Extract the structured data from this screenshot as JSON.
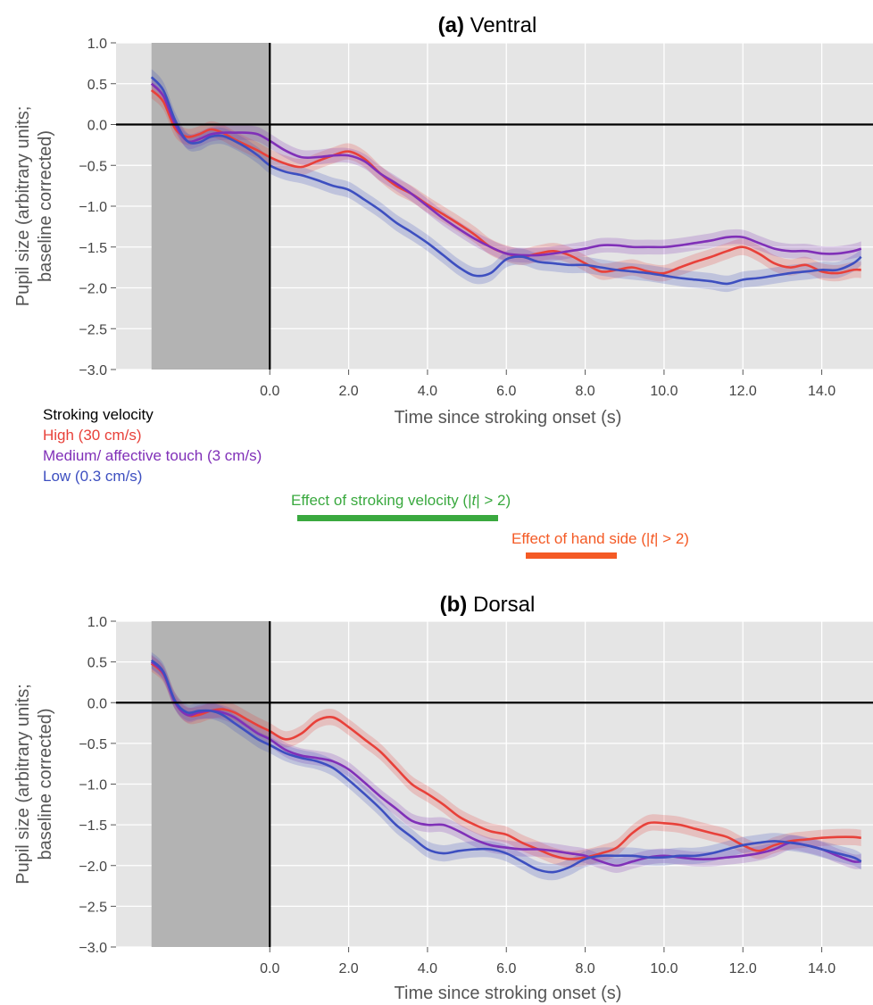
{
  "colors": {
    "high": "#e8413a",
    "medium": "#8030b8",
    "low": "#3d4fc0",
    "effect_velocity": "#3aa93f",
    "effect_hand": "#f45a25",
    "panel_bg": "#e5e5e5",
    "shade": "#b3b3b3"
  },
  "legend": {
    "title": "Stroking velocity",
    "items": [
      {
        "key": "high",
        "label": "High (30 cm/s)"
      },
      {
        "key": "medium",
        "label": "Medium/ affective touch (3 cm/s)"
      },
      {
        "key": "low",
        "label": "Low (0.3 cm/s)"
      }
    ]
  },
  "effects": [
    {
      "key": "velocity",
      "label_pre": "Effect of stroking velocity (|",
      "label_t": "t",
      "label_post": "| > 2)",
      "x_start": 0.7,
      "x_end": 5.8
    },
    {
      "key": "hand",
      "label_pre": "Effect of hand side (|",
      "label_t": "t",
      "label_post": "| > 2)",
      "x_start": 6.5,
      "x_end": 8.8
    }
  ],
  "chart_data": [
    {
      "type": "line",
      "title_bold": "(a)",
      "title": "Ventral",
      "xlabel": "Time since stroking onset (s)",
      "ylabel_lines": [
        "Pupil size (arbitrary units;",
        "baseline corrected)"
      ],
      "xlim": [
        -3.9,
        15.3
      ],
      "ylim": [
        -3.0,
        1.0
      ],
      "xticks": [
        0.0,
        2.0,
        4.0,
        6.0,
        8.0,
        10.0,
        12.0,
        14.0
      ],
      "xtick_labels": [
        "0.0",
        "2.0",
        "4.0",
        "6.0",
        "8.0",
        "10.0",
        "12.0",
        "14.0"
      ],
      "yticks": [
        1.0,
        0.5,
        0.0,
        -0.5,
        -1.0,
        -1.5,
        -2.0,
        -2.5,
        -3.0
      ],
      "ytick_labels": [
        "1.0",
        "0.5",
        "0.0",
        "−0.5",
        "−1.0",
        "−1.5",
        "−2.0",
        "−2.5",
        "−3.0"
      ],
      "shaded_region": [
        -3.0,
        0.0
      ],
      "series": [
        {
          "key": "high",
          "band": 0.1,
          "x": [
            -3.0,
            -2.7,
            -2.4,
            -2.1,
            -1.8,
            -1.5,
            -1.2,
            -0.9,
            -0.6,
            -0.3,
            0.0,
            0.4,
            0.8,
            1.2,
            1.6,
            2.0,
            2.4,
            2.8,
            3.2,
            3.6,
            4.0,
            4.4,
            4.8,
            5.2,
            5.6,
            6.0,
            6.4,
            6.8,
            7.2,
            7.6,
            8.0,
            8.4,
            8.8,
            9.2,
            9.6,
            10.0,
            10.4,
            10.8,
            11.2,
            11.6,
            12.0,
            12.4,
            12.8,
            13.2,
            13.6,
            14.0,
            14.4,
            14.8,
            15.0
          ],
          "y": [
            0.42,
            0.28,
            -0.05,
            -0.15,
            -0.12,
            -0.06,
            -0.1,
            -0.18,
            -0.25,
            -0.32,
            -0.4,
            -0.48,
            -0.52,
            -0.45,
            -0.38,
            -0.33,
            -0.42,
            -0.6,
            -0.75,
            -0.85,
            -0.98,
            -1.1,
            -1.22,
            -1.35,
            -1.5,
            -1.58,
            -1.62,
            -1.58,
            -1.55,
            -1.6,
            -1.7,
            -1.8,
            -1.78,
            -1.75,
            -1.8,
            -1.82,
            -1.75,
            -1.68,
            -1.62,
            -1.55,
            -1.5,
            -1.58,
            -1.7,
            -1.75,
            -1.72,
            -1.8,
            -1.82,
            -1.78,
            -1.78
          ]
        },
        {
          "key": "medium",
          "band": 0.09,
          "x": [
            -3.0,
            -2.7,
            -2.4,
            -2.1,
            -1.8,
            -1.5,
            -1.2,
            -0.9,
            -0.6,
            -0.3,
            0.0,
            0.4,
            0.8,
            1.2,
            1.6,
            2.0,
            2.4,
            2.8,
            3.2,
            3.6,
            4.0,
            4.4,
            4.8,
            5.2,
            5.6,
            6.0,
            6.4,
            6.8,
            7.2,
            7.6,
            8.0,
            8.4,
            8.8,
            9.2,
            9.6,
            10.0,
            10.4,
            10.8,
            11.2,
            11.6,
            12.0,
            12.4,
            12.8,
            13.2,
            13.6,
            14.0,
            14.4,
            14.8,
            15.0
          ],
          "y": [
            0.5,
            0.35,
            0.0,
            -0.2,
            -0.18,
            -0.12,
            -0.1,
            -0.1,
            -0.1,
            -0.12,
            -0.2,
            -0.32,
            -0.4,
            -0.4,
            -0.38,
            -0.38,
            -0.45,
            -0.6,
            -0.72,
            -0.85,
            -1.0,
            -1.15,
            -1.28,
            -1.4,
            -1.5,
            -1.58,
            -1.6,
            -1.6,
            -1.58,
            -1.55,
            -1.52,
            -1.48,
            -1.48,
            -1.5,
            -1.5,
            -1.5,
            -1.48,
            -1.45,
            -1.42,
            -1.38,
            -1.38,
            -1.45,
            -1.52,
            -1.55,
            -1.55,
            -1.58,
            -1.58,
            -1.55,
            -1.52
          ]
        },
        {
          "key": "low",
          "band": 0.1,
          "x": [
            -3.0,
            -2.7,
            -2.4,
            -2.1,
            -1.8,
            -1.5,
            -1.2,
            -0.9,
            -0.6,
            -0.3,
            0.0,
            0.4,
            0.8,
            1.2,
            1.6,
            2.0,
            2.4,
            2.8,
            3.2,
            3.6,
            4.0,
            4.4,
            4.8,
            5.2,
            5.6,
            6.0,
            6.4,
            6.8,
            7.2,
            7.6,
            8.0,
            8.4,
            8.8,
            9.2,
            9.6,
            10.0,
            10.4,
            10.8,
            11.2,
            11.6,
            12.0,
            12.4,
            12.8,
            13.2,
            13.6,
            14.0,
            14.4,
            14.8,
            15.0
          ],
          "y": [
            0.58,
            0.42,
            0.05,
            -0.2,
            -0.22,
            -0.15,
            -0.14,
            -0.2,
            -0.28,
            -0.38,
            -0.5,
            -0.58,
            -0.62,
            -0.68,
            -0.75,
            -0.8,
            -0.92,
            -1.05,
            -1.2,
            -1.32,
            -1.45,
            -1.6,
            -1.75,
            -1.85,
            -1.82,
            -1.65,
            -1.62,
            -1.68,
            -1.7,
            -1.72,
            -1.72,
            -1.75,
            -1.78,
            -1.8,
            -1.82,
            -1.85,
            -1.88,
            -1.9,
            -1.92,
            -1.95,
            -1.9,
            -1.88,
            -1.85,
            -1.82,
            -1.8,
            -1.78,
            -1.78,
            -1.7,
            -1.62
          ]
        }
      ]
    },
    {
      "type": "line",
      "title_bold": "(b)",
      "title": "Dorsal",
      "xlabel": "Time since stroking onset (s)",
      "ylabel_lines": [
        "Pupil size (arbitrary units;",
        "baseline corrected)"
      ],
      "xlim": [
        -3.9,
        15.3
      ],
      "ylim": [
        -3.0,
        1.0
      ],
      "xticks": [
        0.0,
        2.0,
        4.0,
        6.0,
        8.0,
        10.0,
        12.0,
        14.0
      ],
      "xtick_labels": [
        "0.0",
        "2.0",
        "4.0",
        "6.0",
        "8.0",
        "10.0",
        "12.0",
        "14.0"
      ],
      "yticks": [
        1.0,
        0.5,
        0.0,
        -0.5,
        -1.0,
        -1.5,
        -2.0,
        -2.5,
        -3.0
      ],
      "ytick_labels": [
        "1.0",
        "0.5",
        "0.0",
        "−0.5",
        "−1.0",
        "−1.5",
        "−2.0",
        "−2.5",
        "−3.0"
      ],
      "shaded_region": [
        -3.0,
        0.0
      ],
      "series": [
        {
          "key": "high",
          "band": 0.1,
          "x": [
            -3.0,
            -2.7,
            -2.4,
            -2.1,
            -1.8,
            -1.5,
            -1.2,
            -0.9,
            -0.6,
            -0.3,
            0.0,
            0.4,
            0.8,
            1.2,
            1.6,
            2.0,
            2.4,
            2.8,
            3.2,
            3.6,
            4.0,
            4.4,
            4.8,
            5.2,
            5.6,
            6.0,
            6.4,
            6.8,
            7.2,
            7.6,
            8.0,
            8.4,
            8.8,
            9.2,
            9.6,
            10.0,
            10.4,
            10.8,
            11.2,
            11.6,
            12.0,
            12.4,
            12.8,
            13.2,
            13.6,
            14.0,
            14.4,
            14.8,
            15.0
          ],
          "y": [
            0.48,
            0.35,
            0.02,
            -0.15,
            -0.15,
            -0.1,
            -0.08,
            -0.12,
            -0.2,
            -0.28,
            -0.35,
            -0.45,
            -0.38,
            -0.22,
            -0.18,
            -0.3,
            -0.45,
            -0.6,
            -0.8,
            -1.0,
            -1.12,
            -1.25,
            -1.4,
            -1.5,
            -1.58,
            -1.62,
            -1.72,
            -1.8,
            -1.88,
            -1.92,
            -1.9,
            -1.85,
            -1.78,
            -1.6,
            -1.48,
            -1.48,
            -1.5,
            -1.55,
            -1.6,
            -1.65,
            -1.75,
            -1.82,
            -1.75,
            -1.7,
            -1.68,
            -1.66,
            -1.65,
            -1.65,
            -1.66
          ]
        },
        {
          "key": "medium",
          "band": 0.09,
          "x": [
            -3.0,
            -2.7,
            -2.4,
            -2.1,
            -1.8,
            -1.5,
            -1.2,
            -0.9,
            -0.6,
            -0.3,
            0.0,
            0.4,
            0.8,
            1.2,
            1.6,
            2.0,
            2.4,
            2.8,
            3.2,
            3.6,
            4.0,
            4.4,
            4.8,
            5.2,
            5.6,
            6.0,
            6.4,
            6.8,
            7.2,
            7.6,
            8.0,
            8.4,
            8.8,
            9.2,
            9.6,
            10.0,
            10.4,
            10.8,
            11.2,
            11.6,
            12.0,
            12.4,
            12.8,
            13.2,
            13.6,
            14.0,
            14.4,
            14.8,
            15.0
          ],
          "y": [
            0.5,
            0.36,
            0.0,
            -0.15,
            -0.12,
            -0.1,
            -0.12,
            -0.18,
            -0.28,
            -0.38,
            -0.45,
            -0.58,
            -0.65,
            -0.68,
            -0.72,
            -0.82,
            -0.98,
            -1.15,
            -1.3,
            -1.45,
            -1.5,
            -1.5,
            -1.58,
            -1.68,
            -1.75,
            -1.78,
            -1.8,
            -1.8,
            -1.82,
            -1.85,
            -1.88,
            -1.95,
            -2.0,
            -1.95,
            -1.9,
            -1.88,
            -1.9,
            -1.92,
            -1.92,
            -1.9,
            -1.88,
            -1.85,
            -1.8,
            -1.72,
            -1.75,
            -1.8,
            -1.88,
            -1.95,
            -1.95
          ]
        },
        {
          "key": "low",
          "band": 0.1,
          "x": [
            -3.0,
            -2.7,
            -2.4,
            -2.1,
            -1.8,
            -1.5,
            -1.2,
            -0.9,
            -0.6,
            -0.3,
            0.0,
            0.4,
            0.8,
            1.2,
            1.6,
            2.0,
            2.4,
            2.8,
            3.2,
            3.6,
            4.0,
            4.4,
            4.8,
            5.2,
            5.6,
            6.0,
            6.4,
            6.8,
            7.2,
            7.6,
            8.0,
            8.4,
            8.8,
            9.2,
            9.6,
            10.0,
            10.4,
            10.8,
            11.2,
            11.6,
            12.0,
            12.4,
            12.8,
            13.2,
            13.6,
            14.0,
            14.4,
            14.8,
            15.0
          ],
          "y": [
            0.52,
            0.38,
            0.02,
            -0.12,
            -0.1,
            -0.1,
            -0.15,
            -0.25,
            -0.35,
            -0.45,
            -0.52,
            -0.62,
            -0.68,
            -0.72,
            -0.8,
            -0.95,
            -1.12,
            -1.3,
            -1.5,
            -1.65,
            -1.8,
            -1.85,
            -1.82,
            -1.8,
            -1.8,
            -1.85,
            -1.95,
            -2.05,
            -2.08,
            -2.02,
            -1.92,
            -1.88,
            -1.88,
            -1.88,
            -1.9,
            -1.9,
            -1.88,
            -1.88,
            -1.85,
            -1.8,
            -1.75,
            -1.72,
            -1.7,
            -1.72,
            -1.75,
            -1.8,
            -1.85,
            -1.9,
            -1.95
          ]
        }
      ]
    }
  ]
}
